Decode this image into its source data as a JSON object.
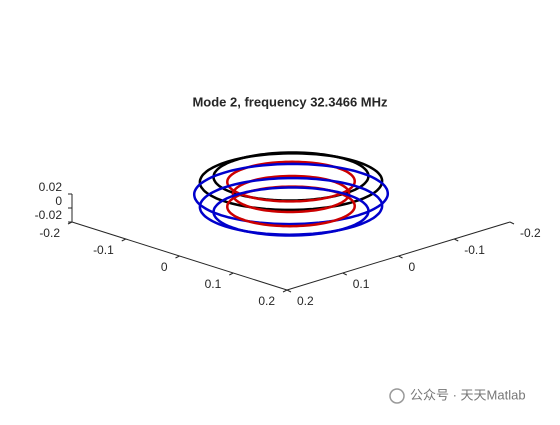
{
  "chart_data": {
    "type": "torus3d",
    "title": "Mode 2, frequency 32.3466 MHz",
    "xlim": [
      -0.2,
      0.2
    ],
    "xticks": [
      -0.2,
      -0.1,
      0,
      0.1,
      0.2
    ],
    "ylim": [
      -0.2,
      0.2
    ],
    "yticks": [
      -0.2,
      -0.1,
      0,
      0.1,
      0.2
    ],
    "zlim": [
      -0.02,
      0.02
    ],
    "zticks": [
      -0.02,
      0,
      0.02
    ],
    "torus": {
      "center_z": 0.02,
      "major_radius": 0.1,
      "minor_radius": 0.025,
      "rings": [
        {
          "phi": 90,
          "color": "#000000"
        },
        {
          "phi": 45,
          "color": "#000000"
        },
        {
          "phi": 135,
          "color": "#cc0000"
        },
        {
          "phi": 0,
          "color": "#0000cc"
        },
        {
          "phi": 180,
          "color": "#cc0000"
        },
        {
          "phi": -45,
          "color": "#0000cc"
        },
        {
          "phi": -135,
          "color": "#cc0000"
        },
        {
          "phi": -90,
          "color": "#0000cc"
        }
      ]
    }
  },
  "watermark": "公众号 · 天天Matlab"
}
